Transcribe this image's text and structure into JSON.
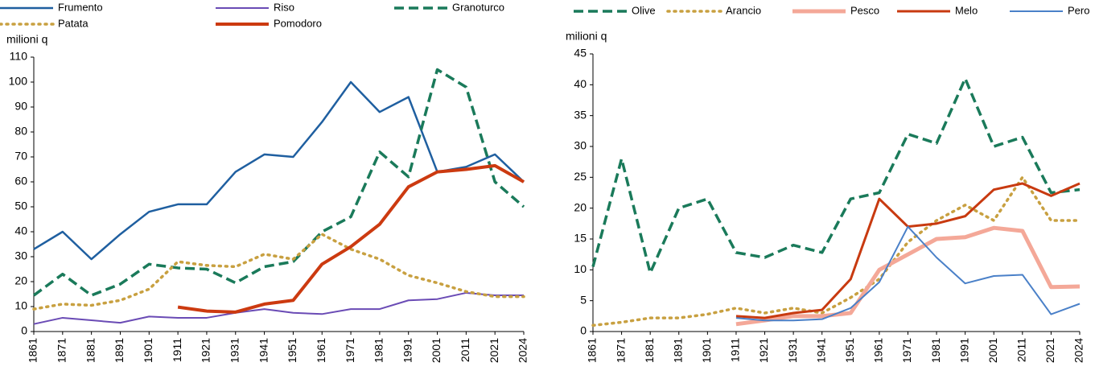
{
  "chart_data": [
    {
      "type": "line",
      "ylabel": "milioni q",
      "categories": [
        "1861",
        "1871",
        "1881",
        "1891",
        "1901",
        "1911",
        "1921",
        "1931",
        "1941",
        "1951",
        "1961",
        "1971",
        "1981",
        "1991",
        "2001",
        "2011",
        "2021",
        "2024"
      ],
      "ylim": [
        0,
        110
      ],
      "yticks": [
        0,
        10,
        20,
        30,
        40,
        50,
        60,
        70,
        80,
        90,
        100,
        110
      ],
      "series": [
        {
          "name": "Frumento",
          "color": "#1f5fa0",
          "linestyle": "solid",
          "linewidth": 2.5,
          "values": [
            33,
            40,
            29,
            39,
            48,
            51,
            51,
            64,
            71,
            70,
            84,
            100,
            88,
            94,
            64,
            66,
            71,
            60
          ]
        },
        {
          "name": "Riso",
          "color": "#6a4bb5",
          "linestyle": "solid",
          "linewidth": 2,
          "values": [
            3,
            5.5,
            4.5,
            3.5,
            6,
            5.5,
            5.5,
            7.5,
            9,
            7.5,
            7,
            9,
            9,
            12.5,
            13,
            15.5,
            14.5,
            14.5
          ]
        },
        {
          "name": "Granoturco",
          "color": "#1a7a5a",
          "linestyle": "dashed",
          "linewidth": 3.5,
          "values": [
            14.5,
            23,
            14.5,
            19,
            27,
            25.5,
            25,
            19.5,
            26,
            28,
            40,
            46,
            72,
            62,
            105,
            98,
            60,
            50
          ]
        },
        {
          "name": "Patata",
          "color": "#c8a040",
          "linestyle": "dotted",
          "linewidth": 3.5,
          "values": [
            9,
            11,
            10.5,
            12.5,
            17,
            28,
            26.5,
            26,
            31,
            29,
            39,
            33,
            29,
            22.5,
            19.5,
            16,
            14,
            14
          ]
        },
        {
          "name": "Pomodoro",
          "color": "#cc3a10",
          "linestyle": "solid",
          "linewidth": 4,
          "values": [
            null,
            null,
            null,
            null,
            null,
            9.8,
            8.2,
            7.8,
            11,
            12.5,
            27,
            34,
            43,
            58,
            64,
            65,
            66.5,
            60
          ]
        }
      ]
    },
    {
      "type": "line",
      "ylabel": "milioni q",
      "categories": [
        "1861",
        "1871",
        "1881",
        "1891",
        "1901",
        "1911",
        "1921",
        "1931",
        "1941",
        "1951",
        "1961",
        "1971",
        "1981",
        "1991",
        "2001",
        "2011",
        "2021",
        "2024"
      ],
      "ylim": [
        0,
        45
      ],
      "yticks": [
        0,
        5,
        10,
        15,
        20,
        25,
        30,
        35,
        40,
        45
      ],
      "series": [
        {
          "name": "Olive",
          "color": "#1a7a5a",
          "linestyle": "dashed",
          "linewidth": 3.5,
          "values": [
            10.5,
            28,
            9.5,
            20,
            21.5,
            12.8,
            12,
            14,
            12.8,
            21.5,
            22.5,
            32,
            30.5,
            41,
            30,
            31.5,
            22.5,
            23
          ]
        },
        {
          "name": "Arancio",
          "color": "#c8a040",
          "linestyle": "dotted",
          "linewidth": 3.5,
          "values": [
            1,
            1.5,
            2.2,
            2.2,
            2.8,
            3.8,
            3,
            3.8,
            3,
            5.5,
            8.5,
            14.5,
            18,
            20.5,
            18,
            25,
            18,
            18
          ]
        },
        {
          "name": "Pesco",
          "color": "#f4a898",
          "linestyle": "solid",
          "linewidth": 5,
          "values": [
            null,
            null,
            null,
            null,
            null,
            1.2,
            1.8,
            2.5,
            2.5,
            3,
            10,
            12.5,
            15,
            15.3,
            16.8,
            16.3,
            7.2,
            7.3
          ]
        },
        {
          "name": "Melo",
          "color": "#c83a10",
          "linestyle": "solid",
          "linewidth": 3,
          "values": [
            null,
            null,
            null,
            null,
            null,
            2.5,
            2.2,
            3,
            3.5,
            8.5,
            21.5,
            17,
            17.5,
            18.7,
            23,
            24,
            22,
            24
          ]
        },
        {
          "name": "Pero",
          "color": "#4a80c8",
          "linestyle": "solid",
          "linewidth": 2,
          "values": [
            null,
            null,
            null,
            null,
            null,
            2.2,
            1.8,
            1.8,
            2,
            3.8,
            8,
            17,
            12,
            7.8,
            9,
            9.2,
            2.8,
            4.5
          ]
        }
      ]
    }
  ]
}
